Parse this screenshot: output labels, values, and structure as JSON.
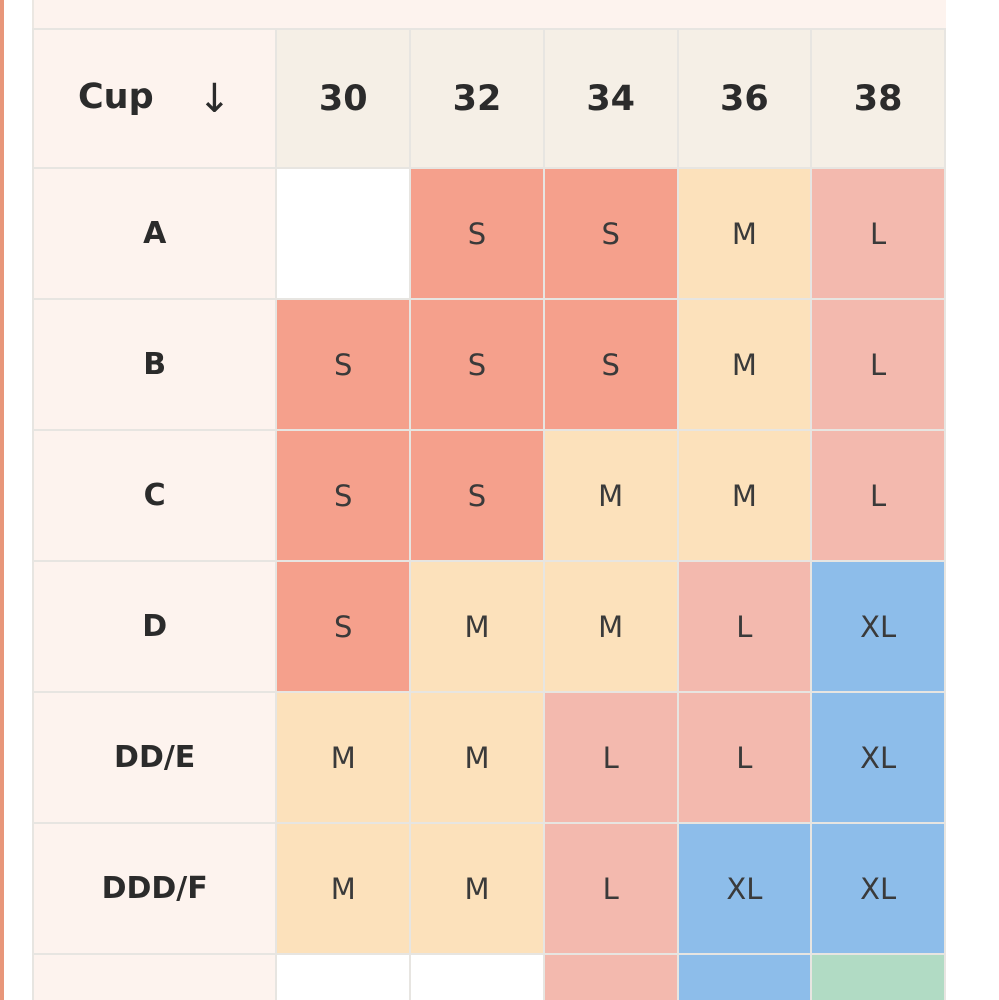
{
  "table": {
    "corner_label": "Cup",
    "sort_glyph": "↓",
    "band_sizes": [
      "30",
      "32",
      "34",
      "36",
      "38"
    ],
    "rows": [
      {
        "cup": "A",
        "cells": [
          "",
          "S",
          "S",
          "M",
          "L"
        ]
      },
      {
        "cup": "B",
        "cells": [
          "S",
          "S",
          "S",
          "M",
          "L"
        ]
      },
      {
        "cup": "C",
        "cells": [
          "S",
          "S",
          "M",
          "M",
          "L"
        ]
      },
      {
        "cup": "D",
        "cells": [
          "S",
          "M",
          "M",
          "L",
          "XL"
        ]
      },
      {
        "cup": "DD/E",
        "cells": [
          "M",
          "M",
          "L",
          "L",
          "XL"
        ]
      },
      {
        "cup": "DDD/F",
        "cells": [
          "M",
          "M",
          "L",
          "XL",
          "XL"
        ]
      }
    ],
    "partial_row": {
      "cup": "",
      "cell_classes": [
        "empty",
        "empty",
        "L",
        "XL",
        "XXL"
      ]
    }
  },
  "colors": {
    "S": "#f5a08c",
    "M": "#fce1bb",
    "L": "#f3b9ae",
    "XL": "#8dbdea",
    "XXL": "#b1dbc4",
    "header_bg": "#f5efe6",
    "label_bg": "#fdf3ee"
  }
}
